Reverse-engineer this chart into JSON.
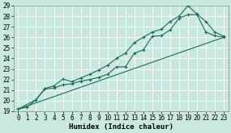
{
  "xlabel": "Humidex (Indice chaleur)",
  "xlim": [
    -0.5,
    23.5
  ],
  "ylim": [
    19,
    29
  ],
  "xticks": [
    0,
    1,
    2,
    3,
    4,
    5,
    6,
    7,
    8,
    9,
    10,
    11,
    12,
    13,
    14,
    15,
    16,
    17,
    18,
    19,
    20,
    21,
    22,
    23
  ],
  "yticks": [
    19,
    20,
    21,
    22,
    23,
    24,
    25,
    26,
    27,
    28,
    29
  ],
  "bg_color": "#c8e8e0",
  "line_color": "#1a6b5a",
  "grid_color": "#ffffff",
  "line1_x": [
    0,
    1,
    2,
    3,
    4,
    5,
    6,
    7,
    8,
    9,
    10,
    11,
    12,
    13,
    14,
    15,
    16,
    17,
    18,
    19,
    20,
    21,
    22,
    23
  ],
  "line1_y": [
    19.2,
    19.4,
    20.1,
    21.1,
    21.2,
    21.5,
    21.6,
    21.85,
    22.0,
    22.2,
    22.5,
    23.2,
    23.2,
    24.5,
    24.8,
    26.1,
    26.15,
    26.7,
    27.8,
    28.15,
    28.15,
    26.5,
    26.15,
    26.0
  ],
  "line2_x": [
    0,
    2,
    3,
    4,
    5,
    6,
    7,
    8,
    9,
    10,
    11,
    12,
    13,
    14,
    15,
    16,
    17,
    18,
    19,
    20,
    21,
    22,
    23
  ],
  "line2_y": [
    19.2,
    20.1,
    21.15,
    21.4,
    22.05,
    21.8,
    22.15,
    22.5,
    22.9,
    23.35,
    24.0,
    24.5,
    25.5,
    26.0,
    26.5,
    26.75,
    27.5,
    28.0,
    29.0,
    28.2,
    27.5,
    26.5,
    26.1
  ],
  "line3_x": [
    0,
    23
  ],
  "line3_y": [
    19.2,
    26.0
  ],
  "tick_fontsize": 5.5,
  "xlabel_fontsize": 6.5,
  "marker": "+"
}
